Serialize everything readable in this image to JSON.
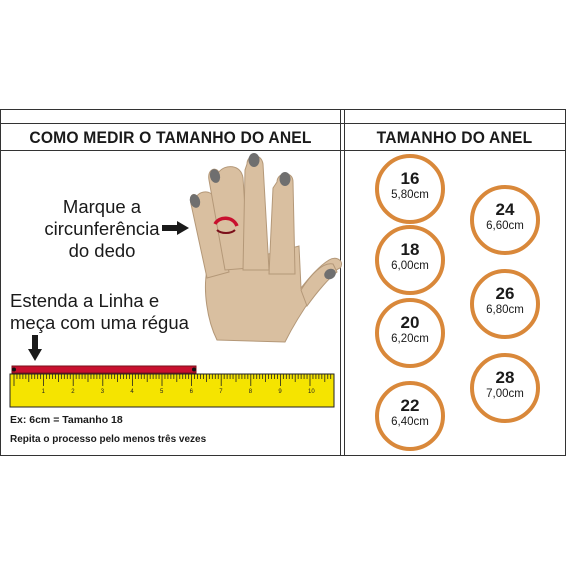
{
  "left_header": "COMO MEDIR O TAMANHO DO ANEL",
  "right_header": "TAMANHO DO ANEL",
  "instruction_mark": [
    "Marque a",
    "circunferência",
    "do dedo"
  ],
  "instruction_line": [
    "Estenda a Linha e",
    "meça com uma régua"
  ],
  "example": "Ex: 6cm = Tamanho 18",
  "repeat_note": "Repita o processo pelo menos três vezes",
  "ruler_labels": [
    "1",
    "2",
    "3",
    "4",
    "5",
    "6",
    "7",
    "8",
    "9",
    "10"
  ],
  "sizes": [
    {
      "size": "16",
      "cm": "5,80cm"
    },
    {
      "size": "18",
      "cm": "6,00cm"
    },
    {
      "size": "20",
      "cm": "6,20cm"
    },
    {
      "size": "22",
      "cm": "6,40cm"
    },
    {
      "size": "24",
      "cm": "6,60cm"
    },
    {
      "size": "26",
      "cm": "6,80cm"
    },
    {
      "size": "28",
      "cm": "7,00cm"
    }
  ],
  "colors": {
    "circle_border": "#d9883a",
    "hand_fill": "#d9bfa0",
    "nail_fill": "#6f6f6f",
    "ruler_yellow": "#f5e400",
    "line_red": "#c8102e"
  }
}
